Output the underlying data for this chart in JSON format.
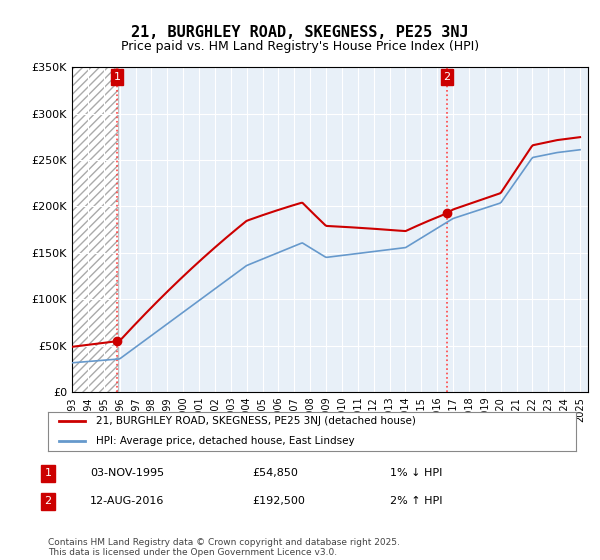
{
  "title": "21, BURGHLEY ROAD, SKEGNESS, PE25 3NJ",
  "subtitle": "Price paid vs. HM Land Registry's House Price Index (HPI)",
  "ylim": [
    0,
    350000
  ],
  "yticks": [
    0,
    50000,
    100000,
    150000,
    200000,
    250000,
    300000,
    350000
  ],
  "ytick_labels": [
    "£0",
    "£50K",
    "£100K",
    "£150K",
    "£200K",
    "£250K",
    "£300K",
    "£350K"
  ],
  "xlim_start": 1993,
  "xlim_end": 2025.5,
  "xticks": [
    1993,
    1994,
    1995,
    1996,
    1997,
    1998,
    1999,
    2000,
    2001,
    2002,
    2003,
    2004,
    2005,
    2006,
    2007,
    2008,
    2009,
    2010,
    2011,
    2012,
    2013,
    2014,
    2015,
    2016,
    2017,
    2018,
    2019,
    2020,
    2021,
    2022,
    2023,
    2024,
    2025
  ],
  "hpi_color": "#6699cc",
  "price_color": "#cc0000",
  "vline_color": "#ff4444",
  "annotation_box_color": "#cc0000",
  "hatched_region_end": 1995.9,
  "sale1_x": 1995.84,
  "sale1_y": 54850,
  "sale1_label": "1",
  "sale2_x": 2016.62,
  "sale2_y": 192500,
  "sale2_label": "2",
  "legend_label_price": "21, BURGHLEY ROAD, SKEGNESS, PE25 3NJ (detached house)",
  "legend_label_hpi": "HPI: Average price, detached house, East Lindsey",
  "table_row1": [
    "1",
    "03-NOV-1995",
    "£54,850",
    "1% ↓ HPI"
  ],
  "table_row2": [
    "2",
    "12-AUG-2016",
    "£192,500",
    "2% ↑ HPI"
  ],
  "footnote": "Contains HM Land Registry data © Crown copyright and database right 2025.\nThis data is licensed under the Open Government Licence v3.0.",
  "bg_color": "#ffffff",
  "plot_bg_color": "#e8f0f8",
  "grid_color": "#ffffff"
}
